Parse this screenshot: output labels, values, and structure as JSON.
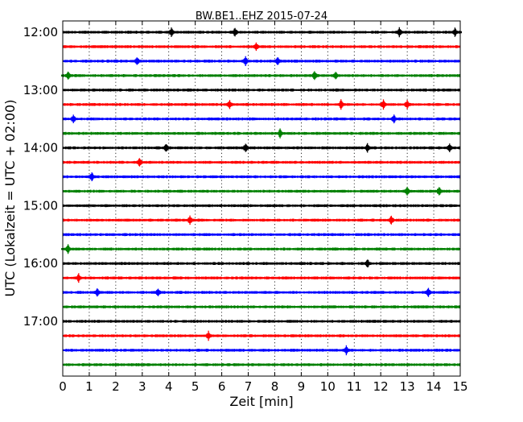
{
  "chart_data": {
    "type": "line",
    "title": "BW.BE1..EHZ 2015-07-24",
    "xlabel": "Zeit  [min]",
    "ylabel": "UTC (Lokalzeit = UTC + 02:00)",
    "xlim": [
      0,
      15
    ],
    "x_ticks": [
      "0",
      "1",
      "2",
      "3",
      "4",
      "5",
      "6",
      "7",
      "8",
      "9",
      "10",
      "11",
      "12",
      "13",
      "14",
      "15"
    ],
    "y_ticks": [
      "12:00",
      "13:00",
      "14:00",
      "15:00",
      "16:00",
      "17:00"
    ],
    "grid": "vertical dotted",
    "line_colors": [
      "#000000",
      "#ff0000",
      "#0000ff",
      "#008000"
    ],
    "traces": [
      {
        "start": "12:00",
        "events": [
          4.1,
          6.5,
          12.7,
          14.8
        ]
      },
      {
        "start": "12:15",
        "events": [
          7.3
        ]
      },
      {
        "start": "12:30",
        "events": [
          2.8,
          6.9,
          8.1
        ]
      },
      {
        "start": "12:45",
        "events": [
          0.2,
          9.5,
          10.3
        ]
      },
      {
        "start": "13:00",
        "events": []
      },
      {
        "start": "13:15",
        "events": [
          6.3,
          10.5,
          12.1,
          13.0
        ]
      },
      {
        "start": "13:30",
        "events": [
          0.4,
          12.5
        ]
      },
      {
        "start": "13:45",
        "events": [
          8.2
        ]
      },
      {
        "start": "14:00",
        "events": [
          3.9,
          6.9,
          11.5,
          14.6
        ]
      },
      {
        "start": "14:15",
        "events": [
          2.9
        ]
      },
      {
        "start": "14:30",
        "events": [
          1.1
        ]
      },
      {
        "start": "14:45",
        "events": [
          13.0,
          14.2
        ]
      },
      {
        "start": "15:00",
        "events": []
      },
      {
        "start": "15:15",
        "events": [
          4.8,
          12.4
        ]
      },
      {
        "start": "15:30",
        "events": []
      },
      {
        "start": "15:45",
        "events": [
          0.2
        ]
      },
      {
        "start": "16:00",
        "events": [
          11.5
        ]
      },
      {
        "start": "16:15",
        "events": [
          0.6
        ]
      },
      {
        "start": "16:30",
        "events": [
          1.3,
          3.6,
          13.8
        ]
      },
      {
        "start": "16:45",
        "events": []
      },
      {
        "start": "17:00",
        "events": []
      },
      {
        "start": "17:15",
        "events": [
          5.5
        ]
      },
      {
        "start": "17:30",
        "events": [
          10.7
        ]
      },
      {
        "start": "17:45",
        "events": []
      }
    ]
  }
}
